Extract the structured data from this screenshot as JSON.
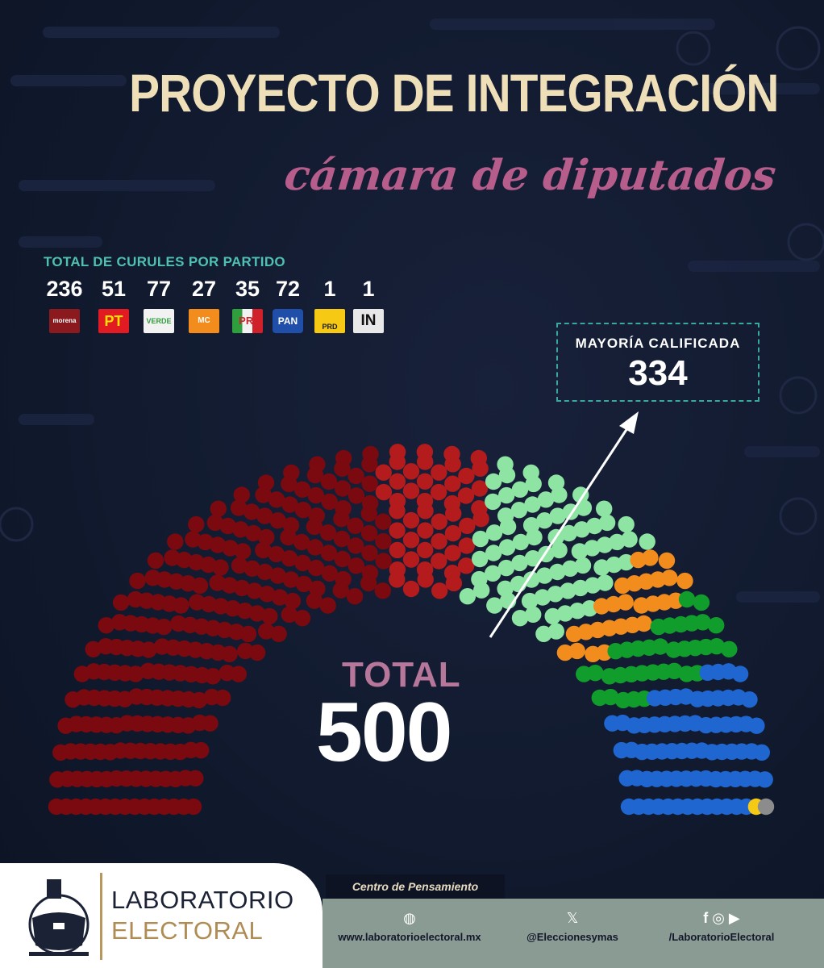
{
  "title": "PROYECTO DE INTEGRACIÓN",
  "subtitle": "cámara de diputados",
  "legend_title": "TOTAL DE CURULES POR PARTIDO",
  "parties": [
    {
      "abbr": "morena",
      "seats": "236",
      "color": "#7a0a10",
      "logo_bg": "#8b1a1e",
      "logo_fg": "#ffffff"
    },
    {
      "abbr": "PT",
      "seats": "51",
      "color": "#b31b1d",
      "logo_bg": "#e21b22",
      "logo_fg": "#ffe000"
    },
    {
      "abbr": "VERDE",
      "seats": "77",
      "color": "#8ee4a3",
      "logo_bg": "#f2f2f2",
      "logo_fg": "#2f9e3d"
    },
    {
      "abbr": "MC",
      "seats": "27",
      "color": "#f28c1c",
      "logo_bg": "#f28c1c",
      "logo_fg": "#ffffff"
    },
    {
      "abbr": "PRI",
      "seats": "35",
      "color": "#119d2c",
      "logo_bg": "#f2f2f2",
      "logo_fg": "#d0212a"
    },
    {
      "abbr": "PAN",
      "seats": "72",
      "color": "#1f66d0",
      "logo_bg": "#1f4fa8",
      "logo_fg": "#ffffff"
    },
    {
      "abbr": "PRD",
      "seats": "1",
      "color": "#f6c915",
      "logo_bg": "#f6c915",
      "logo_fg": "#1a1a1a"
    },
    {
      "abbr": "IN",
      "seats": "1",
      "color": "#8c8c8c",
      "logo_bg": "#e8e8e8",
      "logo_fg": "#111111"
    }
  ],
  "majority_label": "MAYORÍA  CALIFICADA",
  "majority_value": "334",
  "total_label": "TOTAL",
  "total_value": "500",
  "chart_data": {
    "type": "parliament",
    "total": 500,
    "majority": 334,
    "categories": [
      "morena",
      "PT",
      "VERDE",
      "MC",
      "PRI",
      "PAN",
      "PRD",
      "IN"
    ],
    "values": [
      236,
      51,
      77,
      27,
      35,
      72,
      1,
      1
    ],
    "colors": [
      "#7a0a10",
      "#b31b1d",
      "#8ee4a3",
      "#f28c1c",
      "#119d2c",
      "#1f66d0",
      "#f6c915",
      "#8c8c8c"
    ]
  },
  "footer": {
    "brand_line1": "LABORATORIO",
    "brand_line2": "ELECTORAL",
    "tag": "Centro de Pensamiento",
    "website": "www.laboratorioelectoral.mx",
    "x_handle": "@Eleccionesymas",
    "social_handle": "/LaboratorioElectoral",
    "colors": {
      "gold": "#b08c55",
      "navy": "#1c2236",
      "bar": "#8a9b93"
    }
  }
}
